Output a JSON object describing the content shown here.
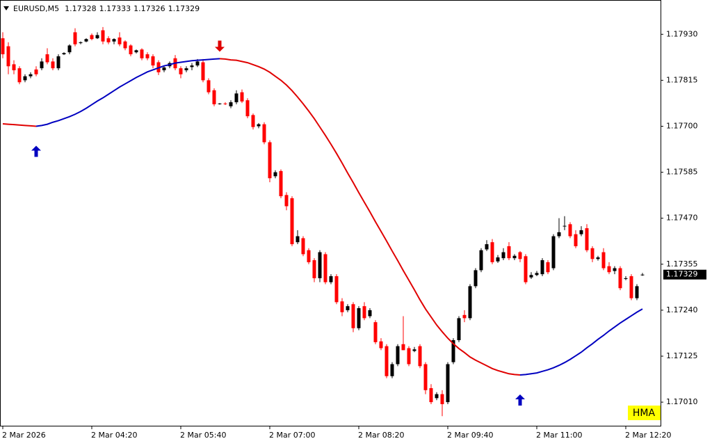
{
  "chart_data": {
    "type": "candlestick",
    "title": "EURUSD,M5",
    "categories": [
      "2 Mar 2026",
      null,
      null,
      null,
      null,
      null,
      null,
      null,
      null,
      null,
      null,
      null,
      null,
      null,
      null,
      null,
      "2 Mar 04:20",
      null,
      null,
      null,
      null,
      null,
      null,
      null,
      null,
      null,
      null,
      null,
      null,
      null,
      null,
      null,
      "2 Mar 05:40",
      null,
      null,
      null,
      null,
      null,
      null,
      null,
      null,
      null,
      null,
      null,
      null,
      null,
      null,
      null,
      "2 Mar 07:00",
      null,
      null,
      null,
      null,
      null,
      null,
      null,
      null,
      null,
      null,
      null,
      null,
      null,
      null,
      null,
      "2 Mar 08:20",
      null,
      null,
      null,
      null,
      null,
      null,
      null,
      null,
      null,
      null,
      null,
      null,
      null,
      null,
      null,
      "2 Mar 09:40",
      null,
      null,
      null,
      null,
      null,
      null,
      null,
      null,
      null,
      null,
      null,
      null,
      null,
      null,
      null,
      "2 Mar 11:00",
      null,
      null,
      null,
      null,
      null,
      null,
      null,
      null,
      null,
      null,
      null,
      null,
      null,
      null,
      null,
      "2 Mar 12:20",
      null,
      null,
      null
    ],
    "open": [
      1.1792,
      1.179,
      1.17855,
      1.17845,
      1.17815,
      1.17825,
      1.17842,
      1.17845,
      1.1788,
      1.17862,
      1.17845,
      1.1788,
      1.17885,
      1.17935,
      1.17908,
      1.17912,
      1.17928,
      1.1792,
      1.1794,
      1.1792,
      1.17912,
      1.17922,
      1.17912,
      1.17902,
      1.17885,
      1.17892,
      1.1788,
      1.17875,
      1.1786,
      1.1784,
      1.1785,
      1.1787,
      1.17845,
      1.1784,
      1.17848,
      1.17852,
      1.1786,
      1.17815,
      1.1779,
      1.17756,
      1.17757,
      1.1775,
      1.1776,
      1.17785,
      1.17765,
      1.17728,
      1.177,
      1.17705,
      1.1766,
      1.17575,
      1.17588,
      1.17528,
      1.1752,
      1.1741,
      1.1742,
      1.1739,
      1.17365,
      1.1732,
      1.1738,
      1.1731,
      1.17325,
      1.17262,
      1.1724,
      1.17255,
      1.17195,
      1.1725,
      1.17225,
      1.1721,
      1.17162,
      1.1715,
      1.17075,
      1.17105,
      1.17155,
      1.17145,
      1.17138,
      1.1715,
      1.17105,
      1.17045,
      1.1702,
      1.1703,
      1.1701,
      1.1711,
      1.17165,
      1.17228,
      1.1722,
      1.173,
      1.1734,
      1.17392,
      1.1741,
      1.17362,
      1.1737,
      1.174,
      1.1737,
      1.17385,
      1.17375,
      1.17322,
      1.17328,
      1.1733,
      1.1736,
      1.17345,
      1.17425,
      1.1745,
      1.17455,
      1.1743,
      1.1743,
      1.17445,
      1.17395,
      1.17368,
      1.17385,
      1.1735,
      1.17338,
      1.17345,
      1.17318,
      1.17325,
      1.1727,
      1.17328
    ],
    "high": [
      1.17935,
      1.1791,
      1.17865,
      1.1785,
      1.1783,
      1.17835,
      1.1785,
      1.1787,
      1.17895,
      1.1787,
      1.1788,
      1.17885,
      1.17905,
      1.17945,
      1.17912,
      1.1792,
      1.17932,
      1.17935,
      1.17948,
      1.17925,
      1.1792,
      1.17935,
      1.17915,
      1.17905,
      1.17892,
      1.17895,
      1.17885,
      1.1788,
      1.17865,
      1.1785,
      1.17862,
      1.17878,
      1.1785,
      1.1785,
      1.17858,
      1.17868,
      1.17868,
      1.1782,
      1.17795,
      1.17758,
      1.1776,
      1.17765,
      1.1779,
      1.17792,
      1.1777,
      1.17732,
      1.17708,
      1.1771,
      1.17665,
      1.1759,
      1.17592,
      1.17535,
      1.17525,
      1.1744,
      1.17425,
      1.17395,
      1.1737,
      1.1739,
      1.17385,
      1.1733,
      1.1733,
      1.1727,
      1.17255,
      1.1726,
      1.1725,
      1.1726,
      1.17245,
      1.17215,
      1.1717,
      1.17155,
      1.1711,
      1.17155,
      1.17225,
      1.1715,
      1.17148,
      1.17155,
      1.1711,
      1.17055,
      1.17035,
      1.1704,
      1.1711,
      1.1717,
      1.17225,
      1.1724,
      1.17305,
      1.17345,
      1.17395,
      1.17415,
      1.17418,
      1.17378,
      1.17395,
      1.1741,
      1.1738,
      1.17388,
      1.1738,
      1.17335,
      1.17338,
      1.1737,
      1.17365,
      1.1743,
      1.1747,
      1.17475,
      1.1746,
      1.1744,
      1.1745,
      1.17455,
      1.174,
      1.17376,
      1.17395,
      1.1736,
      1.1735,
      1.1735,
      1.17325,
      1.1733,
      1.17305,
      1.17333
    ],
    "low": [
      1.1787,
      1.1783,
      1.1783,
      1.17805,
      1.1781,
      1.1782,
      1.17825,
      1.1784,
      1.17855,
      1.1784,
      1.1784,
      1.17878,
      1.1788,
      1.179,
      1.17905,
      1.1791,
      1.17915,
      1.17918,
      1.17905,
      1.17905,
      1.17905,
      1.179,
      1.1789,
      1.17875,
      1.17882,
      1.17865,
      1.17865,
      1.17845,
      1.17828,
      1.17835,
      1.17845,
      1.1784,
      1.1782,
      1.17835,
      1.1784,
      1.17848,
      1.1781,
      1.1778,
      1.1775,
      1.17754,
      1.17753,
      1.17745,
      1.17755,
      1.17758,
      1.1772,
      1.17692,
      1.17695,
      1.17655,
      1.1756,
      1.1757,
      1.1752,
      1.1749,
      1.174,
      1.17405,
      1.17375,
      1.17355,
      1.1731,
      1.1731,
      1.17305,
      1.17305,
      1.17255,
      1.17225,
      1.17235,
      1.17185,
      1.1719,
      1.17215,
      1.1722,
      1.17155,
      1.1714,
      1.1707,
      1.1707,
      1.171,
      1.1714,
      1.171,
      1.17135,
      1.17095,
      1.1703,
      1.17005,
      1.17015,
      1.16975,
      1.17005,
      1.17105,
      1.1716,
      1.1721,
      1.17215,
      1.17295,
      1.17335,
      1.17388,
      1.17355,
      1.17358,
      1.17365,
      1.17365,
      1.17365,
      1.1736,
      1.17305,
      1.17318,
      1.17325,
      1.17325,
      1.1733,
      1.1734,
      1.1742,
      1.1744,
      1.1742,
      1.17395,
      1.17425,
      1.17385,
      1.1736,
      1.17364,
      1.1734,
      1.1733,
      1.1733,
      1.1729,
      1.17315,
      1.17265,
      1.17265,
      1.17326
    ],
    "close": [
      1.1788,
      1.1785,
      1.1784,
      1.1781,
      1.17825,
      1.1783,
      1.1783,
      1.17862,
      1.1786,
      1.17845,
      1.17875,
      1.17883,
      1.17902,
      1.17905,
      1.1791,
      1.17918,
      1.17918,
      1.17928,
      1.17912,
      1.1791,
      1.17918,
      1.17905,
      1.17895,
      1.1788,
      1.1789,
      1.1787,
      1.1787,
      1.17852,
      1.17835,
      1.17847,
      1.17858,
      1.17845,
      1.1783,
      1.17845,
      1.17852,
      1.17862,
      1.17815,
      1.17785,
      1.17755,
      1.17757,
      1.17756,
      1.1776,
      1.17782,
      1.17762,
      1.17725,
      1.17698,
      1.17705,
      1.1766,
      1.1757,
      1.17585,
      1.17525,
      1.175,
      1.17405,
      1.17425,
      1.1738,
      1.1736,
      1.1732,
      1.17385,
      1.1731,
      1.17325,
      1.1726,
      1.17235,
      1.1725,
      1.17195,
      1.17245,
      1.1722,
      1.1724,
      1.1716,
      1.17145,
      1.17075,
      1.17105,
      1.1715,
      1.1714,
      1.17105,
      1.17142,
      1.171,
      1.1704,
      1.1701,
      1.1703,
      1.17005,
      1.17105,
      1.17165,
      1.1722,
      1.1722,
      1.173,
      1.1734,
      1.1739,
      1.17405,
      1.1736,
      1.17372,
      1.17385,
      1.1737,
      1.17376,
      1.17368,
      1.1731,
      1.17328,
      1.17333,
      1.17365,
      1.17335,
      1.17425,
      1.17435,
      1.17451,
      1.17425,
      1.174,
      1.1744,
      1.1739,
      1.17368,
      1.17372,
      1.17345,
      1.17335,
      1.17345,
      1.17295,
      1.1732,
      1.1727,
      1.173,
      1.17329
    ],
    "up_color": "#000000",
    "down_color": "#ff0000",
    "indicator": {
      "name": "HMA",
      "up_color": "#0000c0",
      "down_color": "#e00000",
      "values": [
        1.17706,
        1.17705,
        1.17704,
        1.17703,
        1.17702,
        1.17701,
        1.177,
        1.17702,
        1.17705,
        1.1771,
        1.17714,
        1.17719,
        1.17724,
        1.1773,
        1.17737,
        1.17745,
        1.17754,
        1.17763,
        1.17771,
        1.1778,
        1.17789,
        1.17798,
        1.17806,
        1.17814,
        1.17822,
        1.17829,
        1.17836,
        1.17841,
        1.17846,
        1.17851,
        1.17854,
        1.17858,
        1.1786,
        1.17862,
        1.17864,
        1.17865,
        1.17866,
        1.17867,
        1.17868,
        1.17869,
        1.17868,
        1.17866,
        1.17865,
        1.17862,
        1.17859,
        1.17854,
        1.17849,
        1.17843,
        1.17835,
        1.17825,
        1.17815,
        1.17803,
        1.17789,
        1.17773,
        1.17756,
        1.17738,
        1.17719,
        1.17698,
        1.17677,
        1.17655,
        1.17632,
        1.17608,
        1.17583,
        1.17559,
        1.17534,
        1.1751,
        1.17486,
        1.17461,
        1.17437,
        1.17413,
        1.17388,
        1.17364,
        1.17339,
        1.17315,
        1.17291,
        1.17266,
        1.17243,
        1.17223,
        1.17203,
        1.17186,
        1.1717,
        1.17156,
        1.17144,
        1.17134,
        1.17123,
        1.17115,
        1.17108,
        1.17101,
        1.17094,
        1.17089,
        1.17085,
        1.17081,
        1.17079,
        1.17078,
        1.17079,
        1.17081,
        1.17083,
        1.17087,
        1.17091,
        1.17096,
        1.17102,
        1.17109,
        1.17117,
        1.17126,
        1.17135,
        1.17146,
        1.17156,
        1.17167,
        1.17177,
        1.17188,
        1.17198,
        1.17208,
        1.17217,
        1.17226,
        1.17235,
        1.17243
      ]
    },
    "ylim": [
      1.16951,
      1.18014
    ],
    "yticks": [
      {
        "value": 1.1701,
        "label": "1.17010"
      },
      1.17125,
      {
        "value": 1.1724,
        "label": "1.17240"
      },
      1.17355,
      {
        "value": 1.1747,
        "label": "1.17470"
      },
      1.17585,
      {
        "value": 1.177,
        "label": "1.17700"
      },
      1.17815,
      {
        "value": 1.1793,
        "label": "1.17930"
      }
    ]
  }
}
